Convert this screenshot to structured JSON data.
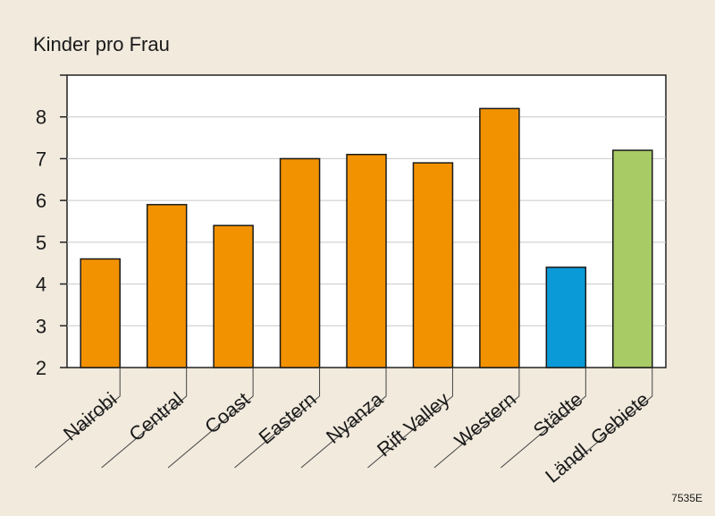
{
  "chart_data": {
    "type": "bar",
    "title": "",
    "ylabel": "Kinder pro Frau",
    "xlabel": "",
    "categories": [
      "Nairobi",
      "Central",
      "Coast",
      "Eastern",
      "Nyanza",
      "Rift Valley",
      "Western",
      "Städte",
      "Ländl. Gebiete"
    ],
    "values": [
      4.6,
      5.9,
      5.4,
      7.0,
      7.1,
      6.9,
      8.2,
      4.4,
      7.2
    ],
    "bar_colors": [
      "#f39200",
      "#f39200",
      "#f39200",
      "#f39200",
      "#f39200",
      "#f39200",
      "#f39200",
      "#0a9ad7",
      "#a8cb65"
    ],
    "ylim": [
      2,
      9
    ],
    "yticks": [
      2,
      3,
      4,
      5,
      6,
      7,
      8
    ],
    "grid": true,
    "legend": "none"
  },
  "figure_code": "7535E",
  "colors": {
    "background": "#f1eadd",
    "plot_background": "#ffffff",
    "gridline": "#c8c8c8",
    "axis": "#222222"
  }
}
